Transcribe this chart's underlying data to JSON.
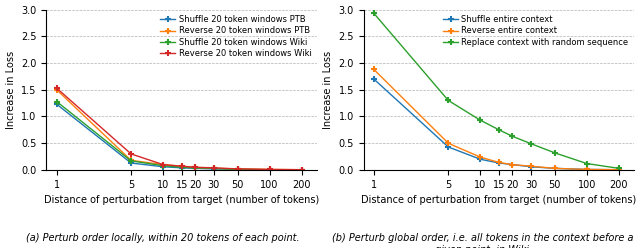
{
  "x_ticks": [
    1,
    5,
    10,
    15,
    20,
    30,
    50,
    100,
    200
  ],
  "left_plot": {
    "xlabel": "Distance of perturbation from target (number of tokens)",
    "ylabel": "Increase in Loss",
    "ylim": [
      0,
      3.0
    ],
    "caption": "(a) Perturb order locally, within 20 tokens of each point.",
    "series": [
      {
        "label": "Shuffle 20 token windows PTB",
        "color": "#1f77b4",
        "marker": "+",
        "values": [
          1.23,
          0.13,
          0.06,
          0.04,
          0.03,
          0.02,
          0.01,
          0.005,
          0.005
        ]
      },
      {
        "label": "Reverse 20 token windows PTB",
        "color": "#ff7f0e",
        "marker": "+",
        "values": [
          1.5,
          0.18,
          0.1,
          0.07,
          0.05,
          0.03,
          0.02,
          0.01,
          0.005
        ]
      },
      {
        "label": "Shuffle 20 token windows Wiki",
        "color": "#2ca02c",
        "marker": "+",
        "values": [
          1.28,
          0.17,
          0.08,
          0.05,
          0.04,
          0.03,
          0.01,
          0.005,
          0.005
        ]
      },
      {
        "label": "Reverse 20 token windows Wiki",
        "color": "#d62728",
        "marker": "+",
        "values": [
          1.53,
          0.3,
          0.1,
          0.07,
          0.05,
          0.04,
          0.02,
          0.01,
          0.005
        ]
      }
    ]
  },
  "right_plot": {
    "xlabel": "Distance of perturbation from target (number of tokens)",
    "ylabel": "Increase in Loss",
    "ylim": [
      0,
      3.0
    ],
    "caption": "(b) Perturb global order, i.e. all tokens in the context before a\ngiven point, in Wiki.",
    "series": [
      {
        "label": "Shuffle entire context",
        "color": "#1f77b4",
        "marker": "+",
        "values": [
          1.7,
          0.43,
          0.2,
          0.13,
          0.1,
          0.06,
          0.03,
          0.01,
          0.005
        ]
      },
      {
        "label": "Reverse entire context",
        "color": "#ff7f0e",
        "marker": "+",
        "values": [
          1.88,
          0.5,
          0.24,
          0.14,
          0.1,
          0.07,
          0.03,
          0.01,
          0.005
        ]
      },
      {
        "label": "Replace context with random sequence",
        "color": "#2ca02c",
        "marker": "+",
        "values": [
          2.93,
          1.3,
          0.93,
          0.75,
          0.63,
          0.49,
          0.32,
          0.12,
          0.03
        ]
      }
    ]
  }
}
